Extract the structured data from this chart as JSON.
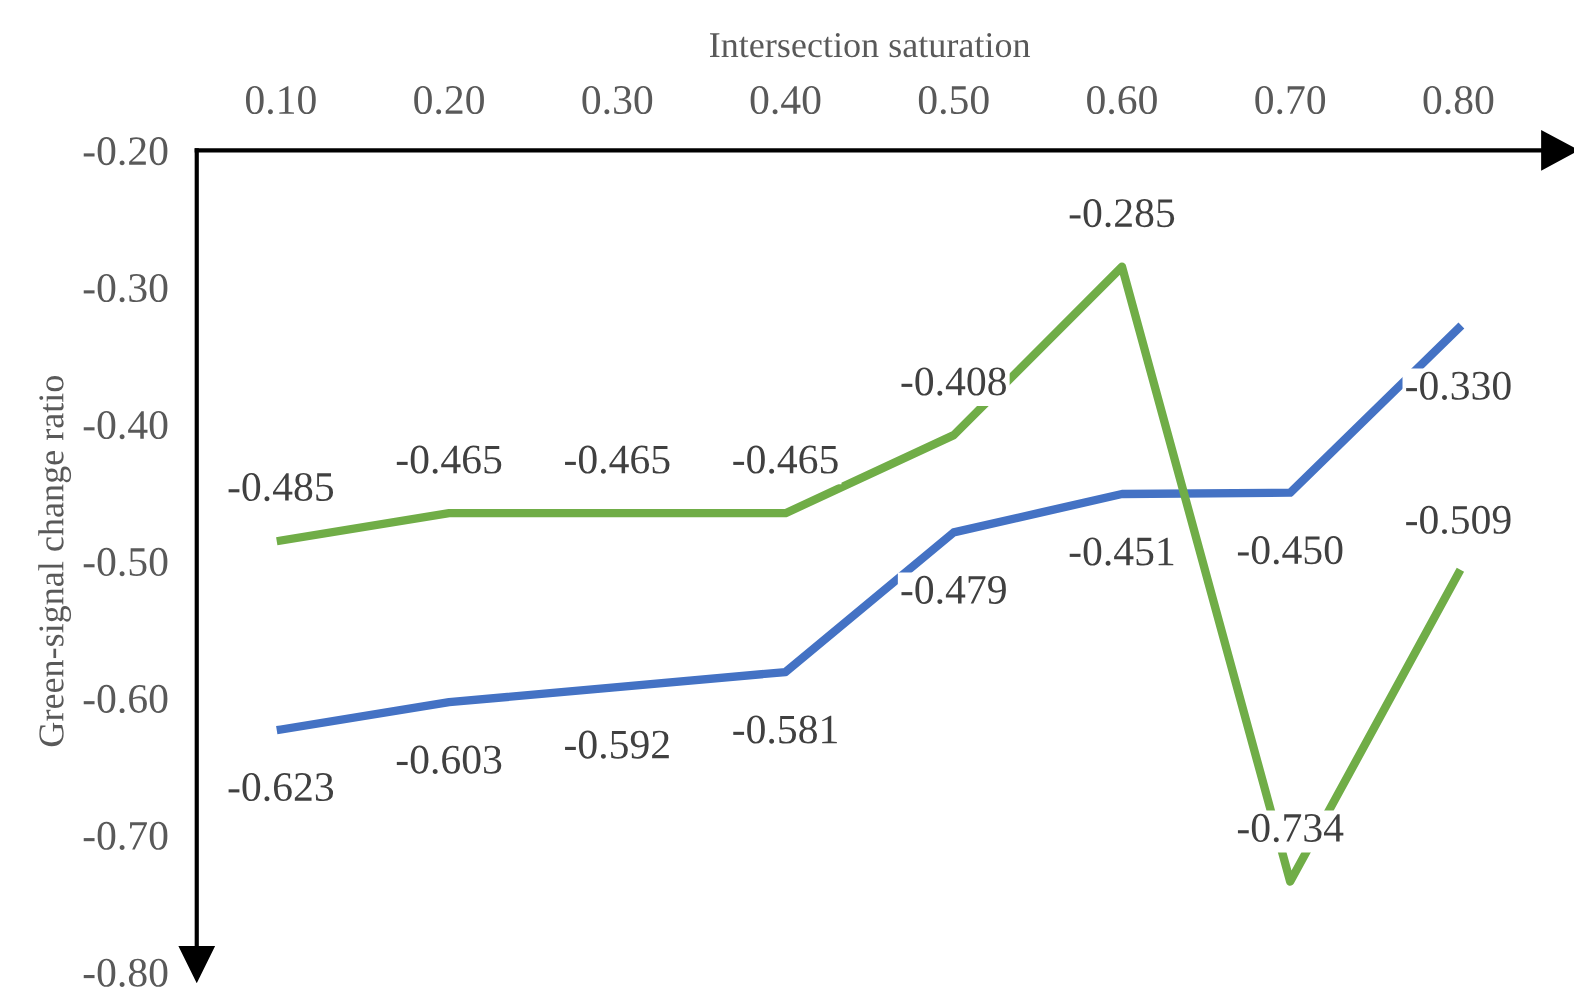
{
  "chart_data": {
    "type": "line",
    "xlabel": "Intersection saturation",
    "ylabel": "Green-signal change ratio",
    "categories": [
      "0.10",
      "0.20",
      "0.30",
      "0.40",
      "0.50",
      "0.60",
      "0.70",
      "0.80"
    ],
    "series": [
      {
        "color": "#4472c4",
        "values": [
          -0.623,
          -0.603,
          -0.592,
          -0.581,
          -0.479,
          -0.451,
          -0.45,
          -0.33
        ],
        "value_labels": [
          "-0.623",
          "-0.603",
          "-0.592",
          "-0.581",
          "-0.479",
          "-0.451",
          "-0.450",
          "-0.330"
        ]
      },
      {
        "color": "#70ad47",
        "values": [
          -0.485,
          -0.465,
          -0.465,
          -0.465,
          -0.408,
          -0.285,
          -0.734,
          -0.509
        ],
        "value_labels": [
          "-0.485",
          "-0.465",
          "-0.465",
          "-0.465",
          "-0.408",
          "-0.285",
          "-0.734",
          "-0.509"
        ]
      }
    ],
    "ylim": [
      -0.8,
      -0.2
    ],
    "yticks": [
      {
        "value": -0.8,
        "label": "-0.80"
      },
      {
        "value": -0.7,
        "label": "-0.70"
      },
      {
        "value": -0.6,
        "label": "-0.60"
      },
      {
        "value": -0.5,
        "label": "-0.50"
      },
      {
        "value": -0.4,
        "label": "-0.40"
      },
      {
        "value": -0.3,
        "label": "-0.30"
      },
      {
        "value": -0.2,
        "label": "-0.20"
      }
    ],
    "grid": false,
    "legend": false,
    "marker": "none",
    "line_style": "solid"
  }
}
